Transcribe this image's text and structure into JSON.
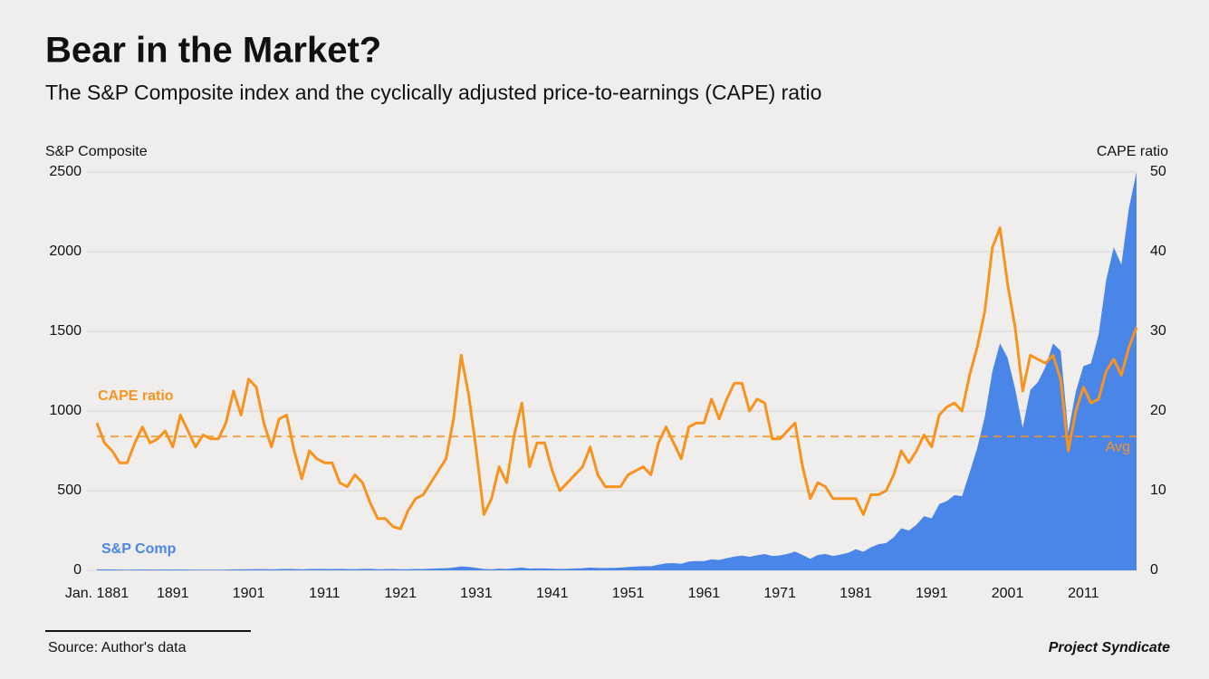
{
  "chart_data": {
    "type": "area_line",
    "title": "Bear in the Market?",
    "subtitle": "The S&P Composite index and the cyclically adjusted price-to-earnings (CAPE) ratio",
    "y_label": "S&P Composite",
    "y2_label": "CAPE ratio",
    "x": [
      1881,
      1882,
      1883,
      1884,
      1885,
      1886,
      1887,
      1888,
      1889,
      1890,
      1891,
      1892,
      1893,
      1894,
      1895,
      1896,
      1897,
      1898,
      1899,
      1900,
      1901,
      1902,
      1903,
      1904,
      1905,
      1906,
      1907,
      1908,
      1909,
      1910,
      1911,
      1912,
      1913,
      1914,
      1915,
      1916,
      1917,
      1918,
      1919,
      1920,
      1921,
      1922,
      1923,
      1924,
      1925,
      1926,
      1927,
      1928,
      1929,
      1930,
      1931,
      1932,
      1933,
      1934,
      1935,
      1936,
      1937,
      1938,
      1939,
      1940,
      1941,
      1942,
      1943,
      1944,
      1945,
      1946,
      1947,
      1948,
      1949,
      1950,
      1951,
      1952,
      1953,
      1954,
      1955,
      1956,
      1957,
      1958,
      1959,
      1960,
      1961,
      1962,
      1963,
      1964,
      1965,
      1966,
      1967,
      1968,
      1969,
      1970,
      1971,
      1972,
      1973,
      1974,
      1975,
      1976,
      1977,
      1978,
      1979,
      1980,
      1981,
      1982,
      1983,
      1984,
      1985,
      1986,
      1987,
      1988,
      1989,
      1990,
      1991,
      1992,
      1993,
      1994,
      1995,
      1996,
      1997,
      1998,
      1999,
      2000,
      2001,
      2002,
      2003,
      2004,
      2005,
      2006,
      2007,
      2008,
      2009,
      2010,
      2011,
      2012,
      2013,
      2014,
      2015,
      2016,
      2017,
      2018
    ],
    "series": [
      {
        "name": "S&P Comp",
        "color": "#4a86e8",
        "kind": "area",
        "values": [
          6.2,
          5.9,
          5.8,
          5.2,
          4.2,
          5.2,
          5.6,
          5.3,
          5.3,
          5.4,
          4.8,
          5.5,
          5.2,
          4.3,
          4.3,
          4.4,
          4.2,
          4.9,
          6.1,
          6.1,
          7.1,
          8.1,
          7.9,
          6.4,
          7.6,
          9.1,
          8.5,
          6.6,
          8.5,
          9.3,
          8.3,
          8.8,
          9.3,
          8.1,
          7.5,
          9.3,
          9.6,
          7.2,
          7.9,
          8.8,
          7.1,
          7.3,
          8.9,
          8.8,
          10.6,
          12.6,
          13.4,
          17.5,
          24.9,
          21.7,
          15.9,
          8.3,
          7.1,
          10.5,
          9.3,
          13.8,
          17.6,
          11.3,
          12.5,
          12.3,
          10.6,
          8.9,
          10.1,
          11.9,
          13.5,
          18.0,
          15.2,
          14.8,
          15.4,
          16.9,
          21.2,
          24.2,
          26.2,
          25.5,
          35.6,
          44.2,
          45.4,
          41.1,
          55.6,
          58.0,
          58.0,
          69.1,
          65.1,
          76.5,
          86.1,
          93.3,
          84.5,
          95.0,
          102,
          90.3,
          93.5,
          103,
          118,
          96.1,
          72.6,
          96.9,
          103,
          90.3,
          99.7,
          110,
          133,
          117,
          145,
          164,
          171,
          208,
          264,
          250,
          286,
          340,
          326,
          416,
          435,
          472,
          465,
          614,
          766,
          963,
          1248,
          1425,
          1335,
          1140,
          895,
          1132,
          1181,
          1278,
          1424,
          1378,
          866,
          1123,
          1282,
          1300,
          1480,
          1822,
          2028,
          1918,
          2275,
          2500
        ]
      },
      {
        "name": "CAPE ratio",
        "color": "#f7931e",
        "kind": "line",
        "axis": "y2",
        "values": [
          18.5,
          16,
          15,
          13.5,
          13.5,
          16,
          18,
          16,
          16.5,
          17.5,
          15.5,
          19.5,
          17.5,
          15.5,
          17,
          16.5,
          16.5,
          18.5,
          22.5,
          19.5,
          24,
          23,
          18.5,
          15.5,
          19,
          19.5,
          15,
          11.5,
          15,
          14,
          13.5,
          13.5,
          11,
          10.5,
          12,
          11,
          8.5,
          6.5,
          6.5,
          5.5,
          5.2,
          7.5,
          9,
          9.5,
          11,
          12.5,
          14,
          19,
          27,
          22,
          15,
          7,
          9,
          13,
          11,
          17,
          21,
          13,
          16,
          16,
          12.5,
          10,
          11,
          12,
          13,
          15.5,
          12,
          10.5,
          10.5,
          10.5,
          12,
          12.5,
          13,
          12,
          16,
          18,
          16,
          14,
          18,
          18.5,
          18.5,
          21.5,
          19,
          21.5,
          23.5,
          23.5,
          20,
          21.5,
          21,
          16.5,
          16.5,
          17.5,
          18.5,
          13,
          9,
          11,
          10.5,
          9,
          9,
          9,
          9,
          7,
          9.5,
          9.5,
          10,
          12,
          15,
          13.5,
          15,
          17,
          15.5,
          19.5,
          20.5,
          21,
          20,
          24.5,
          28,
          32.5,
          40.5,
          43,
          36,
          30.5,
          22.5,
          27,
          26.5,
          26,
          27,
          24,
          15,
          20,
          23,
          21,
          21.5,
          25,
          26.5,
          24.5,
          28,
          30.5
        ]
      }
    ],
    "average": {
      "label": "Avg",
      "value": 16.8
    },
    "xlim": [
      1881,
      2018
    ],
    "xticks": [
      {
        "value": 1881,
        "label": "Jan. 1881"
      },
      1891,
      1901,
      1911,
      1921,
      1931,
      1941,
      1951,
      1961,
      1971,
      1981,
      1991,
      2001,
      2011
    ],
    "ylim": [
      0,
      2500
    ],
    "yticks": [
      0,
      500,
      1000,
      1500,
      2000,
      2500
    ],
    "y2lim": [
      0,
      50
    ],
    "y2ticks": [
      0,
      10,
      20,
      30,
      40,
      50
    ],
    "grid": true,
    "source": "Source: Author's data",
    "publisher": "Project Syndicate"
  }
}
